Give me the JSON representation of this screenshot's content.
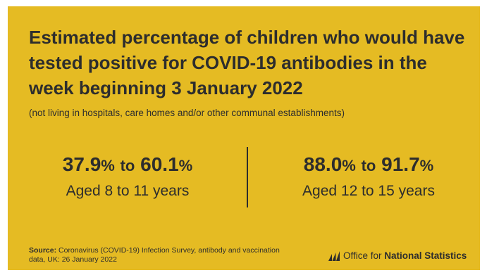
{
  "title": "Estimated percentage of children who would have tested positive for COVID-19 antibodies in the week beginning 3 January 2022",
  "subtitle": "(not living in hospitals, care homes and/or other communal establishments)",
  "stats": [
    {
      "low": "37.9",
      "high": "60.1",
      "unit": "%",
      "joiner": "to",
      "label": "Aged 8 to 11 years"
    },
    {
      "low": "88.0",
      "high": "91.7",
      "unit": "%",
      "joiner": "to",
      "label": "Aged 12 to 15 years"
    }
  ],
  "source": {
    "heading": "Source:",
    "text": "Coronavirus (COVID-19) Infection Survey, antibody and vaccination data, UK: 26 January 2022"
  },
  "logo": {
    "prefix": "Office for ",
    "name": "National Statistics",
    "icon": "ons-logo-icon"
  },
  "colors": {
    "background": "#e5bb23",
    "text": "#2d2d2d"
  }
}
